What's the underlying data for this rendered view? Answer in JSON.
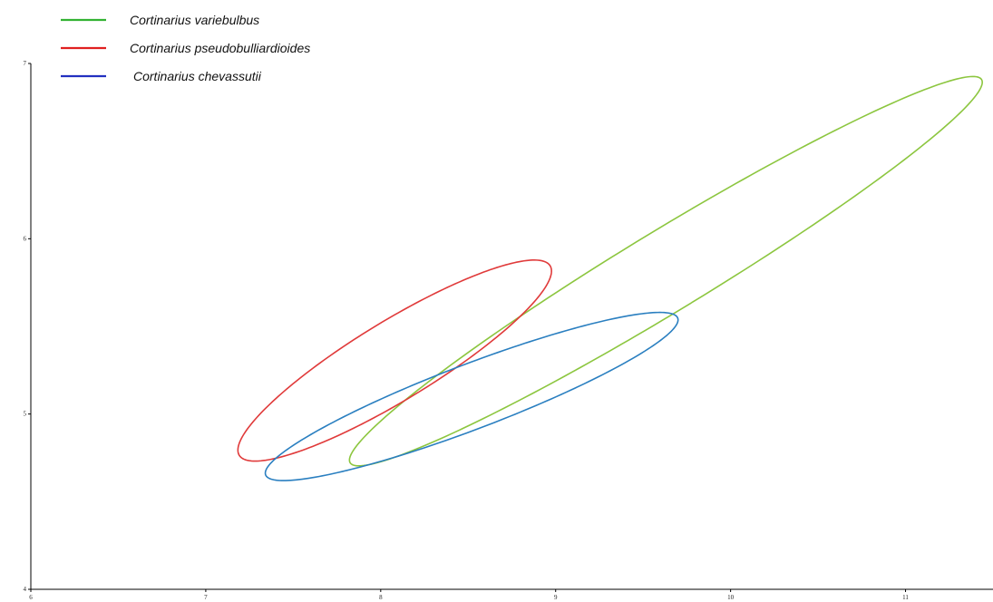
{
  "chart_data": {
    "type": "scatter",
    "title": "",
    "xlabel": "",
    "ylabel": "",
    "xlim": [
      6,
      11.5
    ],
    "ylim": [
      4,
      7
    ],
    "x_ticks": [
      "6",
      "7",
      "8",
      "9",
      "10",
      "11"
    ],
    "y_ticks": [
      "4",
      "5",
      "6",
      "7"
    ],
    "legend_position": "top-left",
    "grid": false,
    "series": [
      {
        "name": "Cortinarius variebulbus",
        "color": "#8cc63f",
        "legend_color": "#33b233",
        "shape": "ellipse",
        "center": [
          9.63,
          5.815
        ],
        "semi_major": 2.11,
        "semi_minor": 0.23,
        "angle_deg": 31.2
      },
      {
        "name": "Cortinarius pseudobulliardioides",
        "color": "#e03a3a",
        "legend_color": "#e02020",
        "shape": "ellipse",
        "center": [
          8.08,
          5.305
        ],
        "semi_major": 1.04,
        "semi_minor": 0.225,
        "angle_deg": 31.3
      },
      {
        "name": "Cortinarius chevassutii",
        "color": "#2a7fc0",
        "legend_color": "#2230c0",
        "shape": "ellipse",
        "center": [
          8.52,
          5.1
        ],
        "semi_major": 1.26,
        "semi_minor": 0.185,
        "angle_deg": 20.8
      }
    ]
  }
}
